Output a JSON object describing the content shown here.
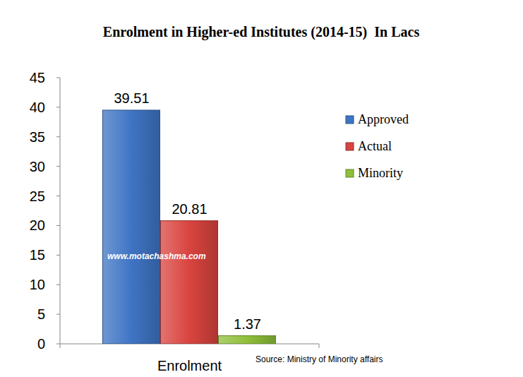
{
  "chart_data": {
    "type": "bar",
    "title": "Enrolment in Higher-ed Institutes (2014-15)  In Lacs",
    "categories": [
      "Enrolment"
    ],
    "series": [
      {
        "name": "Approved",
        "color": "#3f74c4",
        "values": [
          39.51
        ]
      },
      {
        "name": "Actual",
        "color": "#d9443f",
        "values": [
          20.81
        ]
      },
      {
        "name": "Minority",
        "color": "#8fbf3a",
        "values": [
          1.37
        ]
      }
    ],
    "ylim": [
      0,
      45
    ],
    "yticks": [
      0,
      5,
      10,
      15,
      20,
      25,
      30,
      35,
      40,
      45
    ],
    "data_labels": true,
    "legend": "right",
    "grid": false,
    "annotations": [
      "www.motachashma.com",
      "Source: Ministry of Minority affairs"
    ]
  }
}
